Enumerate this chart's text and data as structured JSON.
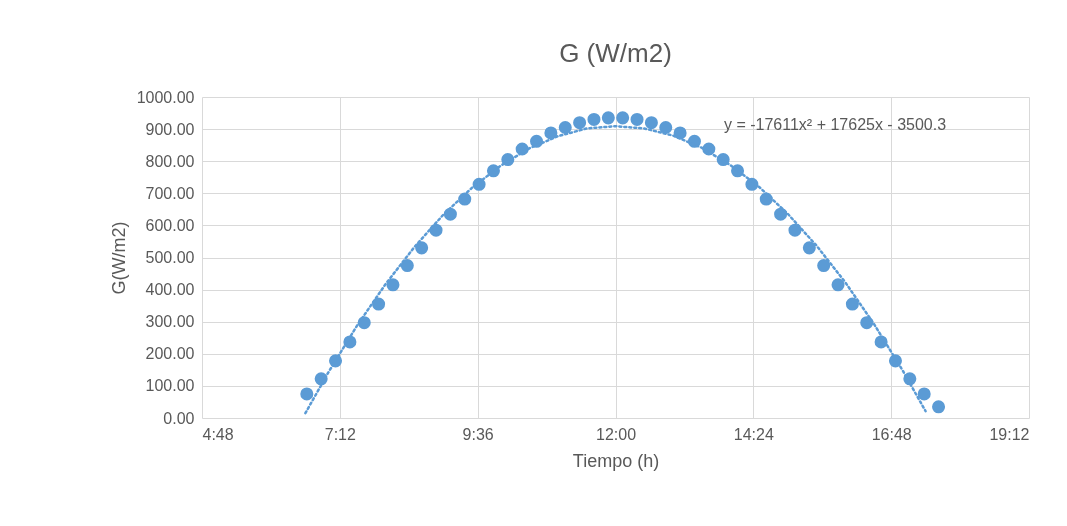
{
  "chart_data": {
    "type": "scatter",
    "title": "G (W/m2)",
    "xlabel": "Tiempo (h)",
    "ylabel": "G(W/m2)",
    "annotations": [
      "y = -17611x² + 17625x - 3500.3"
    ],
    "xlim": [
      4.8,
      19.2
    ],
    "xticks": [
      {
        "value": 4.8,
        "label": "4:48"
      },
      {
        "value": 7.2,
        "label": "7:12"
      },
      {
        "value": 9.6,
        "label": "9:36"
      },
      {
        "value": 12,
        "label": "12:00"
      },
      {
        "value": 14.4,
        "label": "14:24"
      },
      {
        "value": 16.8,
        "label": "16:48"
      },
      {
        "value": 19.2,
        "label": "19:12"
      }
    ],
    "ylim": [
      0,
      1000
    ],
    "yticks": [
      {
        "value": 0,
        "label": "0.00"
      },
      {
        "value": 100,
        "label": "100.00"
      },
      {
        "value": 200,
        "label": "200.00"
      },
      {
        "value": 300,
        "label": "300.00"
      },
      {
        "value": 400,
        "label": "400.00"
      },
      {
        "value": 500,
        "label": "500.00"
      },
      {
        "value": 600,
        "label": "600.00"
      },
      {
        "value": 700,
        "label": "700.00"
      },
      {
        "value": 800,
        "label": "800.00"
      },
      {
        "value": 900,
        "label": "900.00"
      },
      {
        "value": 1000,
        "label": "1000.00"
      }
    ],
    "grid": true,
    "marker": "circle",
    "series": [
      {
        "type": "scatter",
        "color": "#5b9bd5",
        "x": [
          6.625,
          6.875,
          7.125,
          7.375,
          7.625,
          7.875,
          8.125,
          8.375,
          8.625,
          8.875,
          9.125,
          9.375,
          9.625,
          9.875,
          10.125,
          10.375,
          10.625,
          10.875,
          11.125,
          11.375,
          11.625,
          11.875,
          12.125,
          12.375,
          12.625,
          12.875,
          13.125,
          13.375,
          13.625,
          13.875,
          14.125,
          14.375,
          14.625,
          14.875,
          15.125,
          15.375,
          15.625,
          15.875,
          16.125,
          16.375,
          16.625,
          16.875,
          17.125,
          17.375,
          17.625
        ],
        "values": [
          75,
          122,
          178,
          237,
          297,
          355,
          415,
          475,
          530,
          585,
          635,
          682,
          728,
          770,
          805,
          838,
          862,
          888,
          905,
          920,
          930,
          935,
          935,
          930,
          920,
          905,
          888,
          862,
          838,
          805,
          770,
          728,
          682,
          635,
          585,
          530,
          475,
          415,
          355,
          297,
          237,
          178,
          122,
          75,
          35
        ]
      },
      {
        "type": "line",
        "color": "#5b9bd5",
        "line_style": "dotted",
        "marker": "none",
        "x": [
          6.6,
          7,
          7.5,
          8,
          8.5,
          9,
          9.5,
          10,
          10.5,
          11,
          11.5,
          12,
          12.5,
          13,
          13.5,
          14,
          14.5,
          15,
          15.5,
          16,
          16.5,
          17,
          17.4
        ],
        "values": [
          15,
          142,
          288,
          418,
          533,
          633,
          717,
          786,
          840,
          878,
          902,
          909,
          902,
          880,
          842,
          788,
          720,
          636,
          537,
          423,
          293,
          148,
          21
        ]
      }
    ]
  }
}
